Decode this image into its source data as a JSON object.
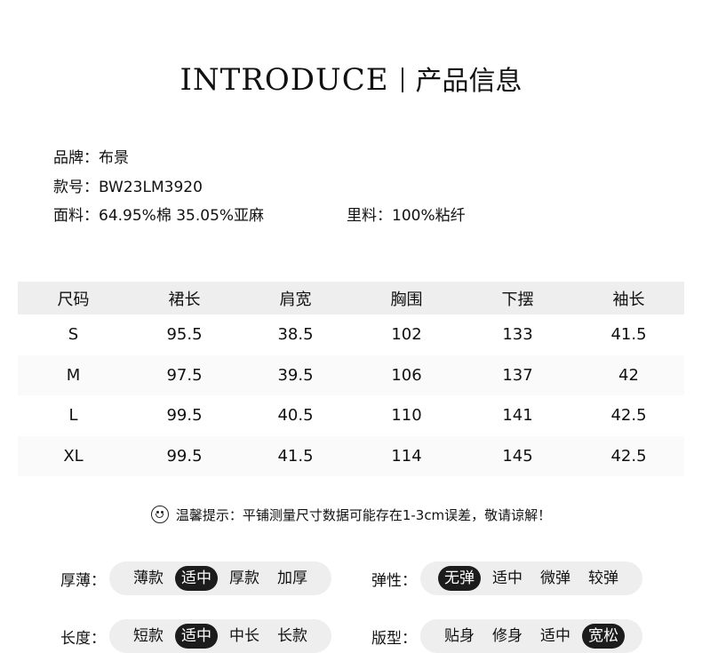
{
  "header": {
    "title_en": "INTRODUCE",
    "title_cn": "产品信息"
  },
  "info": {
    "brand": "品牌：布景",
    "style_no": "款号：BW23LM3920",
    "fabric": "面料：64.95%棉 35.05%亚麻",
    "lining": "里料：100%粘纤"
  },
  "size_table": {
    "headers": [
      "尺码",
      "裙长",
      "肩宽",
      "胸围",
      "下摆",
      "袖长"
    ],
    "rows": [
      [
        "S",
        "95.5",
        "38.5",
        "102",
        "133",
        "41.5"
      ],
      [
        "M",
        "97.5",
        "39.5",
        "106",
        "137",
        "42"
      ],
      [
        "L",
        "99.5",
        "40.5",
        "110",
        "141",
        "42.5"
      ],
      [
        "XL",
        "99.5",
        "41.5",
        "114",
        "145",
        "42.5"
      ]
    ]
  },
  "tip": {
    "icon": "smile-icon",
    "text": "温馨提示：平铺测量尺寸数据可能存在1-3cm误差，敬请谅解！"
  },
  "attributes": [
    {
      "label": "厚薄：",
      "options": [
        "薄款",
        "适中",
        "厚款",
        "加厚"
      ],
      "selected": 1
    },
    {
      "label": "弹性：",
      "options": [
        "无弹",
        "适中",
        "微弹",
        "较弹"
      ],
      "selected": 0
    },
    {
      "label": "长度：",
      "options": [
        "短款",
        "适中",
        "中长",
        "长款"
      ],
      "selected": 1
    },
    {
      "label": "版型：",
      "options": [
        "贴身",
        "修身",
        "适中",
        "宽松"
      ],
      "selected": 3
    }
  ],
  "colors": {
    "selected_bg": "#1c1c1c",
    "pill_bg": "#eeeeee",
    "header_bg": "#eeeeee"
  }
}
